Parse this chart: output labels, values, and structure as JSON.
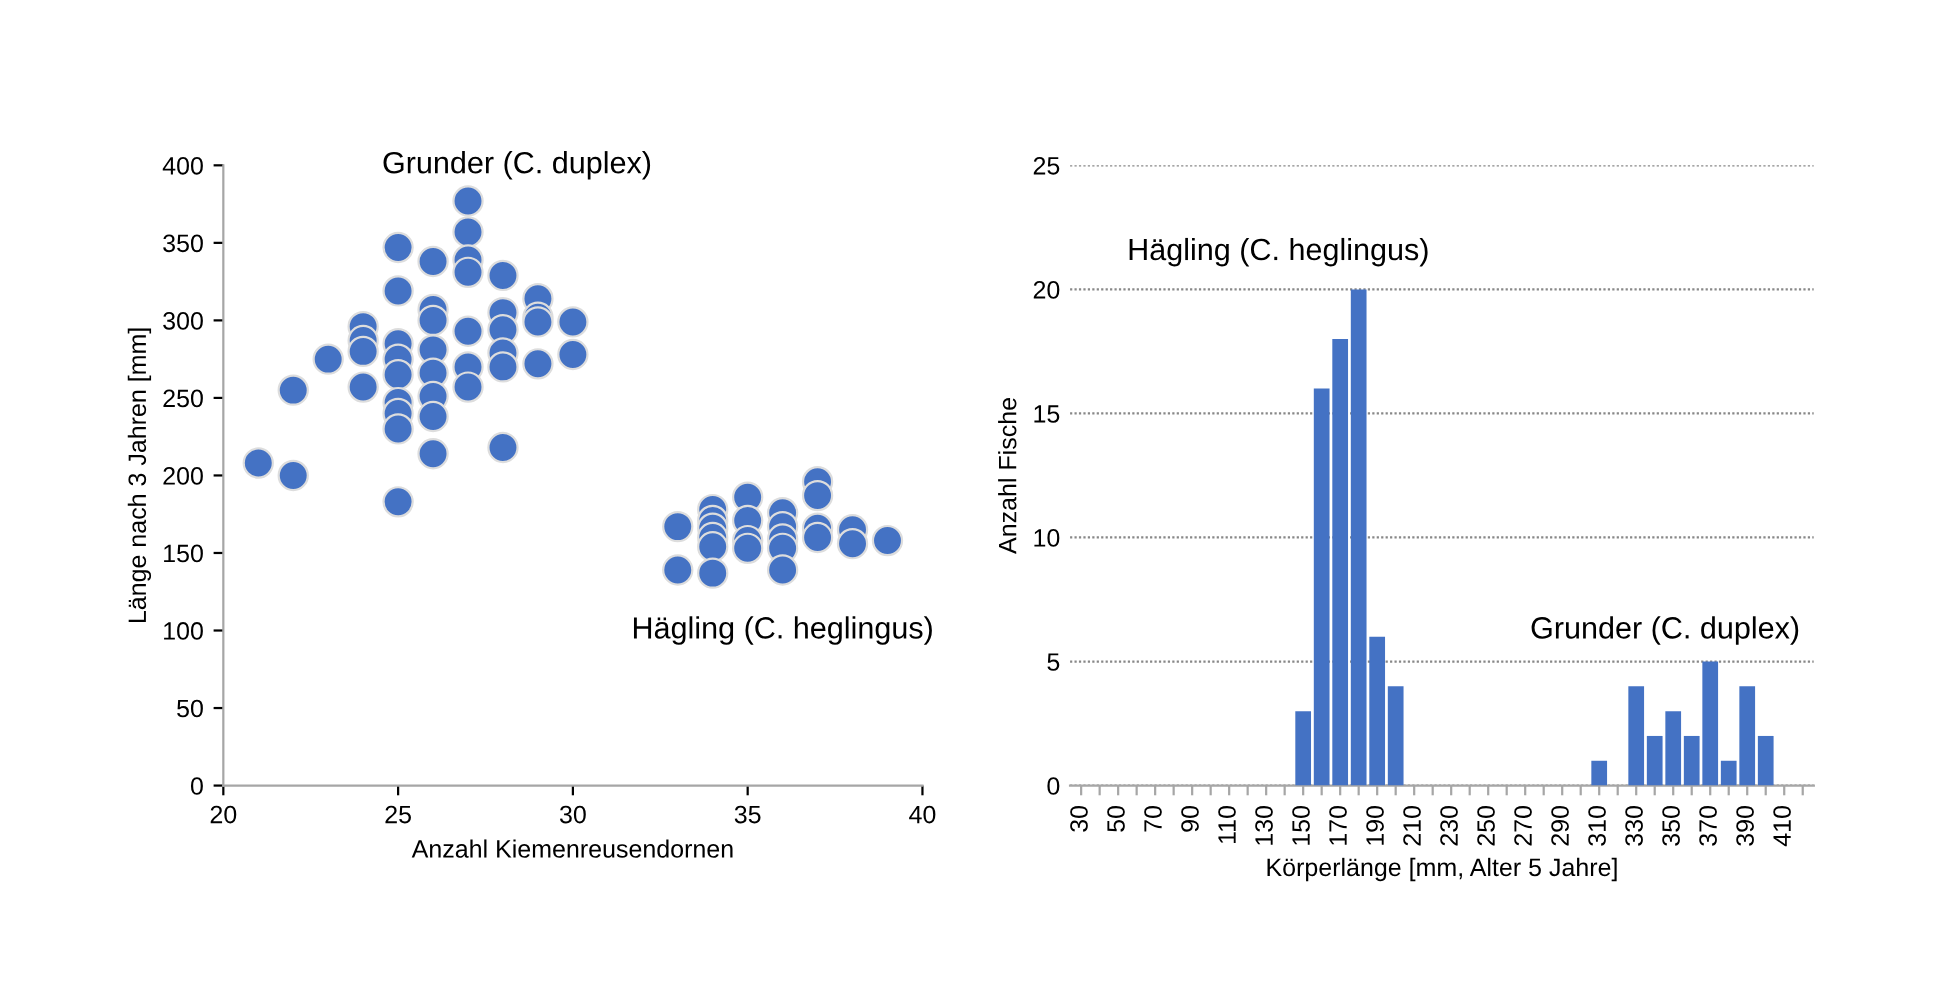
{
  "chart_data": [
    {
      "type": "scatter",
      "xlabel": "Anzahl Kiemenreusendornen",
      "ylabel": "Länge nach 3 Jahren [mm]",
      "xlim": [
        20,
        40
      ],
      "xticks": [
        20,
        25,
        30,
        35,
        40
      ],
      "ylim": [
        0,
        400
      ],
      "yticks": [
        0,
        50,
        100,
        150,
        200,
        250,
        300,
        350,
        400
      ],
      "grid": false,
      "legend": false,
      "marker": "circle",
      "annotations": [
        "Grunder (C. duplex)",
        "Hägling (C. heglingus)"
      ],
      "series": [
        {
          "color": "#4472c4",
          "x": [
            21,
            22,
            22,
            23,
            24,
            24,
            24,
            24,
            25,
            25,
            25,
            25,
            25,
            25,
            25,
            25,
            25,
            26,
            26,
            26,
            26,
            26,
            26,
            26,
            26,
            27,
            27,
            27,
            27,
            27,
            27,
            27,
            28,
            28,
            28,
            28,
            28,
            28,
            29,
            29,
            29,
            29,
            30,
            30,
            33,
            33,
            34,
            34,
            34,
            34,
            34,
            34,
            35,
            35,
            35,
            35,
            36,
            36,
            36,
            36,
            36,
            37,
            37,
            37,
            37,
            38,
            38,
            39
          ],
          "values": [
            208,
            255,
            200,
            275,
            296,
            287,
            280,
            257,
            347,
            319,
            285,
            275,
            265,
            247,
            240,
            230,
            183,
            338,
            307,
            300,
            281,
            266,
            251,
            238,
            214,
            377,
            357,
            339,
            331,
            293,
            270,
            257,
            329,
            305,
            294,
            279,
            270,
            218,
            314,
            302,
            299,
            272,
            299,
            278,
            167,
            139,
            178,
            171,
            166,
            160,
            154,
            137,
            186,
            171,
            158,
            153,
            176,
            167,
            159,
            153,
            139,
            196,
            187,
            166,
            160,
            165,
            156,
            158
          ]
        }
      ]
    },
    {
      "type": "bar",
      "xlabel": "Körperlänge [mm, Alter 5 Jahre]",
      "ylabel": "Anzahl Fische",
      "categories": [
        "30",
        null,
        "50",
        null,
        "70",
        null,
        "90",
        null,
        "110",
        null,
        "130",
        null,
        "150",
        null,
        "170",
        null,
        "190",
        null,
        "210",
        null,
        "230",
        null,
        "250",
        null,
        "270",
        null,
        "290",
        null,
        "310",
        null,
        "330",
        null,
        "350",
        null,
        "370",
        null,
        "390",
        null,
        "410",
        null
      ],
      "values": [
        0,
        0,
        0,
        0,
        0,
        0,
        0,
        0,
        0,
        0,
        0,
        0,
        3,
        16,
        18,
        20,
        6,
        4,
        0,
        0,
        0,
        0,
        0,
        0,
        0,
        0,
        0,
        0,
        1,
        0,
        4,
        2,
        3,
        2,
        5,
        1,
        4,
        2,
        0,
        0
      ],
      "color": "#4472c4",
      "ylim": [
        0,
        25
      ],
      "yticks": [
        0,
        5,
        10,
        15,
        20,
        25
      ],
      "grid": "y",
      "legend": false,
      "annotations": [
        "Hägling (C. heglingus)",
        "Grunder (C. duplex)"
      ]
    }
  ]
}
